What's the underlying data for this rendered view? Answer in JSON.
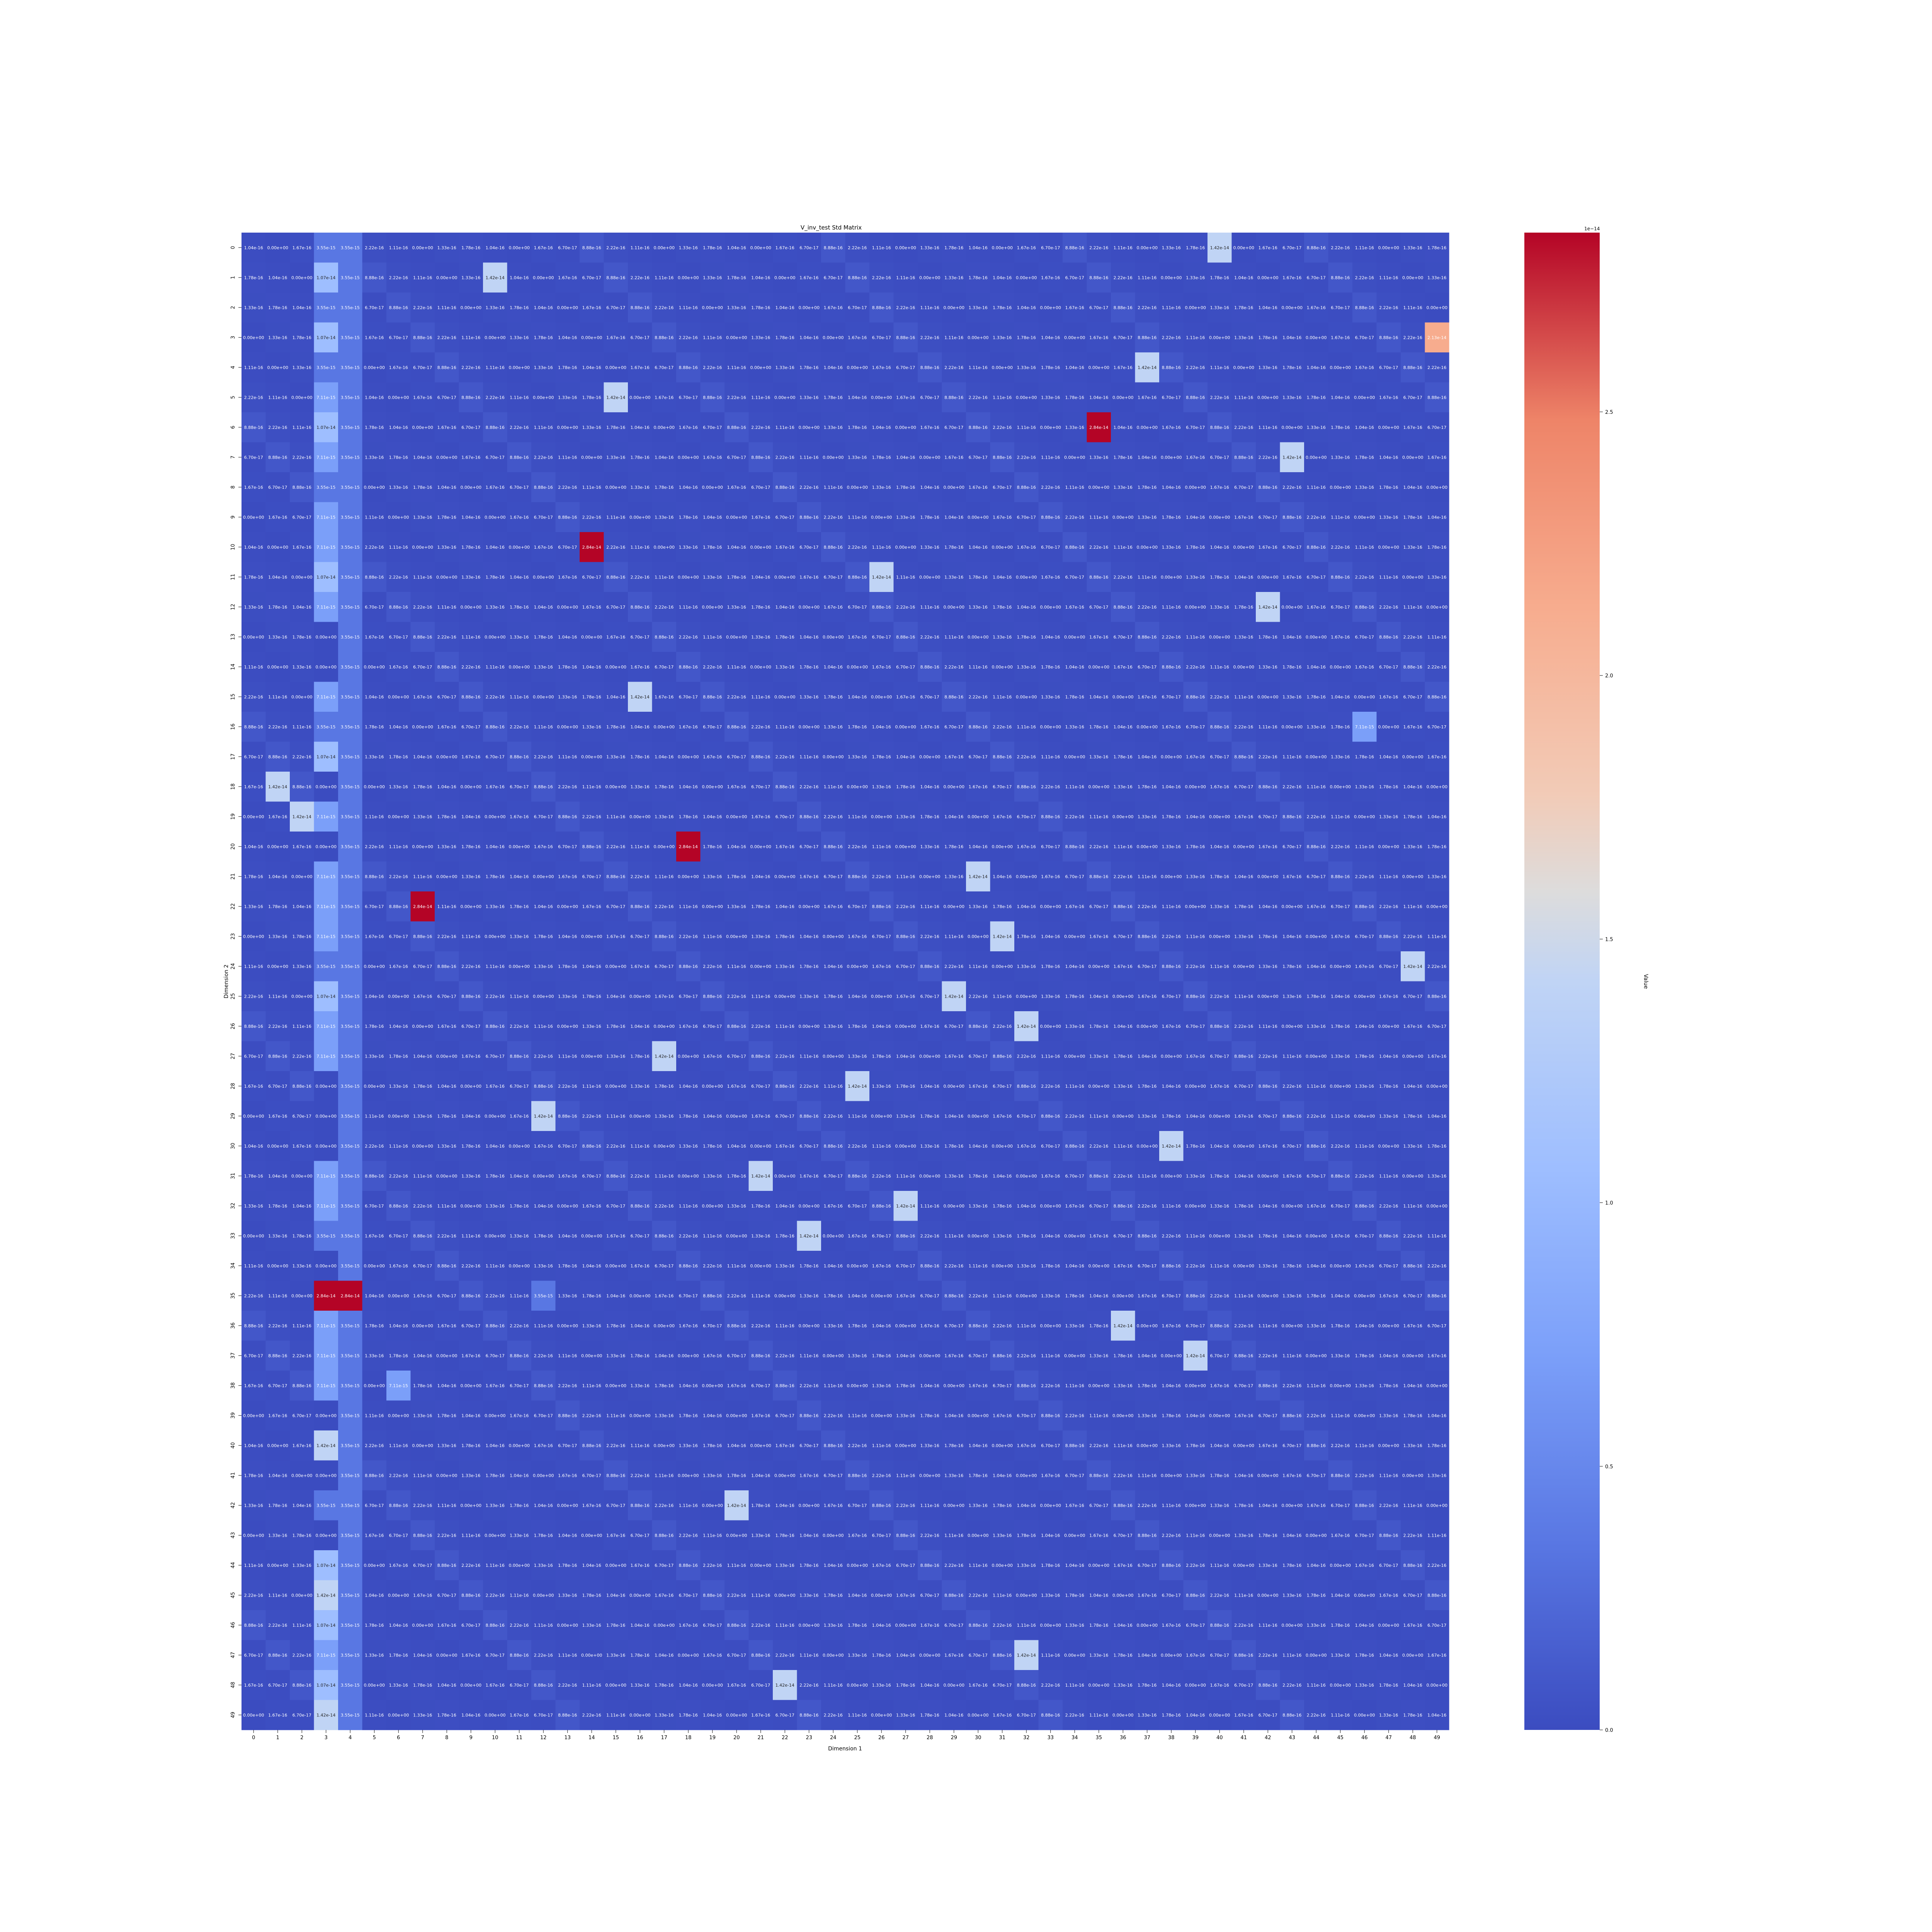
{
  "chart_data": {
    "type": "heatmap",
    "title": "V_inv_test Std Matrix",
    "xlabel": "Dimension 1",
    "ylabel": "Dimension 2",
    "x_ticks": [
      "0",
      "1",
      "2",
      "3",
      "4",
      "5",
      "6",
      "7",
      "8",
      "9",
      "10",
      "11",
      "12",
      "13",
      "14",
      "15",
      "16",
      "17",
      "18",
      "19",
      "20",
      "21",
      "22",
      "23",
      "24",
      "25",
      "26",
      "27",
      "28",
      "29",
      "30",
      "31",
      "32",
      "33",
      "34",
      "35",
      "36",
      "37",
      "38",
      "39",
      "40",
      "41",
      "42",
      "43",
      "44",
      "45",
      "46",
      "47",
      "48",
      "49"
    ],
    "y_ticks": [
      "0",
      "1",
      "2",
      "3",
      "4",
      "5",
      "6",
      "7",
      "8",
      "9",
      "10",
      "11",
      "12",
      "13",
      "14",
      "15",
      "16",
      "17",
      "18",
      "19",
      "20",
      "21",
      "22",
      "23",
      "24",
      "25",
      "26",
      "27",
      "28",
      "29",
      "30",
      "31",
      "32",
      "33",
      "34",
      "35",
      "36",
      "37",
      "38",
      "39",
      "40",
      "41",
      "42",
      "43",
      "44",
      "45",
      "46",
      "47",
      "48",
      "49"
    ],
    "colorbar": {
      "label": "Value",
      "exponent_label": "1e−14",
      "ticks": [
        "0.0",
        "0.5",
        "1.0",
        "1.5",
        "2.0",
        "2.5"
      ],
      "tick_values": [
        0,
        0.5,
        1.0,
        1.5,
        2.0,
        2.5
      ],
      "range": [
        0,
        2.84
      ],
      "colormap": "coolwarm"
    },
    "units_scale": 1e-14,
    "value_format": "exponent_2f",
    "grid": false,
    "legend": "colorbar-right",
    "base_pattern": [
      0.0104,
      0,
      0.0888,
      0,
      0.0133,
      0.0222,
      0.0167,
      0.0178,
      0.0111,
      0.0067
    ],
    "column_background": {
      "3": 0.711,
      "4": 0.355
    },
    "cell_overrides": [
      {
        "row": 0,
        "col": 3,
        "value": 0.355
      },
      {
        "row": 0,
        "col": 40,
        "value": 1.42
      },
      {
        "row": 1,
        "col": 3,
        "value": 1.07
      },
      {
        "row": 1,
        "col": 10,
        "value": 1.42
      },
      {
        "row": 2,
        "col": 3,
        "value": 0.355
      },
      {
        "row": 3,
        "col": 3,
        "value": 1.07
      },
      {
        "row": 3,
        "col": 49,
        "value": 2.13
      },
      {
        "row": 4,
        "col": 3,
        "value": 0.355
      },
      {
        "row": 4,
        "col": 37,
        "value": 1.42
      },
      {
        "row": 5,
        "col": 15,
        "value": 1.42
      },
      {
        "row": 6,
        "col": 3,
        "value": 1.07
      },
      {
        "row": 6,
        "col": 35,
        "value": 2.84
      },
      {
        "row": 7,
        "col": 43,
        "value": 1.42
      },
      {
        "row": 8,
        "col": 3,
        "value": 0.355
      },
      {
        "row": 10,
        "col": 14,
        "value": 2.84
      },
      {
        "row": 11,
        "col": 3,
        "value": 1.07
      },
      {
        "row": 11,
        "col": 26,
        "value": 1.42
      },
      {
        "row": 12,
        "col": 42,
        "value": 1.42
      },
      {
        "row": 13,
        "col": 3,
        "value": 0
      },
      {
        "row": 14,
        "col": 3,
        "value": 0
      },
      {
        "row": 15,
        "col": 16,
        "value": 1.42
      },
      {
        "row": 16,
        "col": 3,
        "value": 0.355
      },
      {
        "row": 16,
        "col": 46,
        "value": 0.711
      },
      {
        "row": 17,
        "col": 3,
        "value": 1.07
      },
      {
        "row": 18,
        "col": 1,
        "value": 1.42
      },
      {
        "row": 18,
        "col": 3,
        "value": 0
      },
      {
        "row": 19,
        "col": 2,
        "value": 1.42
      },
      {
        "row": 20,
        "col": 3,
        "value": 0
      },
      {
        "row": 20,
        "col": 18,
        "value": 2.84
      },
      {
        "row": 21,
        "col": 30,
        "value": 1.42
      },
      {
        "row": 22,
        "col": 7,
        "value": 2.84
      },
      {
        "row": 23,
        "col": 31,
        "value": 1.42
      },
      {
        "row": 24,
        "col": 3,
        "value": 0.355
      },
      {
        "row": 24,
        "col": 48,
        "value": 1.42
      },
      {
        "row": 25,
        "col": 3,
        "value": 1.07
      },
      {
        "row": 25,
        "col": 29,
        "value": 1.42
      },
      {
        "row": 26,
        "col": 32,
        "value": 1.42
      },
      {
        "row": 27,
        "col": 17,
        "value": 1.42
      },
      {
        "row": 28,
        "col": 3,
        "value": 0
      },
      {
        "row": 28,
        "col": 25,
        "value": 1.42
      },
      {
        "row": 29,
        "col": 3,
        "value": 0
      },
      {
        "row": 29,
        "col": 12,
        "value": 1.42
      },
      {
        "row": 30,
        "col": 3,
        "value": 0
      },
      {
        "row": 30,
        "col": 38,
        "value": 1.42
      },
      {
        "row": 31,
        "col": 21,
        "value": 1.42
      },
      {
        "row": 32,
        "col": 27,
        "value": 1.42
      },
      {
        "row": 33,
        "col": 3,
        "value": 0.355
      },
      {
        "row": 33,
        "col": 23,
        "value": 1.42
      },
      {
        "row": 34,
        "col": 3,
        "value": 0
      },
      {
        "row": 35,
        "col": 3,
        "value": 2.84
      },
      {
        "row": 35,
        "col": 4,
        "value": 2.84
      },
      {
        "row": 35,
        "col": 12,
        "value": 0.355
      },
      {
        "row": 36,
        "col": 36,
        "value": 1.42
      },
      {
        "row": 37,
        "col": 39,
        "value": 1.42
      },
      {
        "row": 38,
        "col": 6,
        "value": 0.711
      },
      {
        "row": 39,
        "col": 3,
        "value": 0
      },
      {
        "row": 40,
        "col": 3,
        "value": 1.42
      },
      {
        "row": 41,
        "col": 3,
        "value": 0
      },
      {
        "row": 42,
        "col": 3,
        "value": 0.355
      },
      {
        "row": 42,
        "col": 20,
        "value": 1.42
      },
      {
        "row": 43,
        "col": 3,
        "value": 0
      },
      {
        "row": 44,
        "col": 3,
        "value": 1.07
      },
      {
        "row": 45,
        "col": 3,
        "value": 1.42
      },
      {
        "row": 46,
        "col": 3,
        "value": 1.07
      },
      {
        "row": 47,
        "col": 32,
        "value": 1.42
      },
      {
        "row": 48,
        "col": 3,
        "value": 1.07
      },
      {
        "row": 48,
        "col": 22,
        "value": 1.42
      },
      {
        "row": 49,
        "col": 3,
        "value": 1.42
      }
    ]
  }
}
